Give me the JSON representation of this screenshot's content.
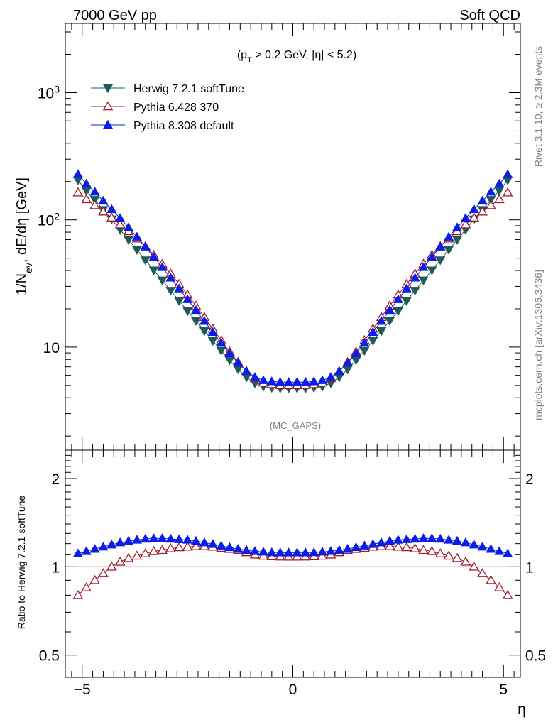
{
  "header": {
    "left": "7000 GeV pp",
    "right": "Soft QCD"
  },
  "annotations": {
    "cut": "(p_T > 0.2 GeV, |η| < 5.2)",
    "analysis": "(MC_GAPS)",
    "rivet": "Rivet 3.1.10, ≥ 2.3M events",
    "mcplots": "mcplots.cern.ch [arXiv:1306.3436]"
  },
  "colors": {
    "herwig": "#1f5b5b",
    "pythia6": "#a01a2a",
    "pythia8": "#0b1ee6"
  },
  "chart_data": [
    {
      "type": "line",
      "scale": "log",
      "ylabel": "1/N_ev, dE/dη [GeV]",
      "xlabel": "η",
      "xlim": [
        -5.4,
        5.4
      ],
      "ylim": [
        1.55,
        3500
      ],
      "y_tick_labels": [
        {
          "value": 10,
          "label": "10"
        },
        {
          "value": 100,
          "label": "10^2"
        },
        {
          "value": 1000,
          "label": "10^3"
        }
      ],
      "x": [
        -5.1,
        -4.9,
        -4.7,
        -4.5,
        -4.3,
        -4.1,
        -3.9,
        -3.7,
        -3.5,
        -3.3,
        -3.1,
        -2.9,
        -2.7,
        -2.5,
        -2.3,
        -2.1,
        -1.9,
        -1.7,
        -1.5,
        -1.3,
        -1.1,
        -0.9,
        -0.7,
        -0.5,
        -0.3,
        -0.1,
        0.1,
        0.3,
        0.5,
        0.7,
        0.9,
        1.1,
        1.3,
        1.5,
        1.7,
        1.9,
        2.1,
        2.3,
        2.5,
        2.7,
        2.9,
        3.1,
        3.3,
        3.5,
        3.7,
        3.9,
        4.1,
        4.3,
        4.5,
        4.7,
        4.9,
        5.1
      ],
      "series": [
        {
          "name": "Herwig 7.2.1 softTune",
          "marker": "triangle-down-filled",
          "values": [
            205,
            170,
            144,
            120,
            101,
            83.7,
            69.8,
            58.2,
            48.3,
            40.2,
            33.5,
            27.8,
            23.1,
            19.3,
            16.1,
            13.4,
            11.2,
            9.39,
            7.89,
            6.7,
            5.8,
            5.2,
            4.9,
            4.8,
            4.75,
            4.75,
            4.75,
            4.75,
            4.8,
            4.9,
            5.2,
            5.8,
            6.7,
            7.89,
            9.39,
            11.2,
            13.4,
            16.1,
            19.3,
            23.1,
            27.8,
            33.5,
            40.2,
            48.3,
            58.2,
            69.8,
            83.7,
            101,
            120,
            144,
            170,
            205
          ]
        },
        {
          "name": "Pythia 6.428 370",
          "marker": "triangle-up-open",
          "values": [
            164,
            145,
            130,
            116,
            104,
            92.0,
            81.2,
            71.1,
            61.8,
            53.0,
            45.0,
            37.7,
            31.3,
            25.8,
            21.1,
            17.2,
            13.9,
            11.3,
            9.2,
            7.61,
            6.46,
            5.68,
            5.26,
            5.1,
            5.02,
            5.01,
            5.01,
            5.02,
            5.1,
            5.26,
            5.68,
            6.46,
            7.61,
            9.2,
            11.3,
            13.9,
            17.2,
            21.1,
            25.8,
            31.3,
            37.7,
            45.0,
            53.0,
            61.8,
            71.1,
            81.2,
            92.0,
            104,
            116,
            130,
            145,
            164
          ]
        },
        {
          "name": "Pythia 8.308 default",
          "marker": "triangle-up-filled",
          "values": [
            228,
            192,
            166,
            141,
            121,
            103,
            87.1,
            73.4,
            61.4,
            51.0,
            42.4,
            35.0,
            28.8,
            23.7,
            19.5,
            16.0,
            13.1,
            10.8,
            8.92,
            7.51,
            6.46,
            5.8,
            5.48,
            5.37,
            5.31,
            5.31,
            5.31,
            5.31,
            5.37,
            5.48,
            5.8,
            6.46,
            7.51,
            8.92,
            10.8,
            13.1,
            16.0,
            19.5,
            23.7,
            28.8,
            35.0,
            42.4,
            51.0,
            61.4,
            73.4,
            87.1,
            103,
            121,
            141,
            166,
            192,
            228
          ]
        }
      ]
    },
    {
      "type": "line",
      "scale": "log",
      "ylabel": "Ratio to Herwig 7.2.1 softTune",
      "xlabel": "η",
      "xlim": [
        -5.4,
        5.4
      ],
      "ylim": [
        0.42,
        2.5
      ],
      "y_tick_labels": [
        {
          "value": 0.5,
          "label": "0.5"
        },
        {
          "value": 1,
          "label": "1"
        },
        {
          "value": 2,
          "label": "2"
        }
      ],
      "x_tick_labels": [
        {
          "value": -5,
          "label": "−5"
        },
        {
          "value": 0,
          "label": "0"
        },
        {
          "value": 5,
          "label": "5"
        }
      ],
      "reference_line": 1,
      "series": [
        {
          "name": "Pythia 6.428 370",
          "marker": "triangle-up-open",
          "values": [
            0.8,
            0.85,
            0.9,
            0.95,
            1.0,
            1.04,
            1.07,
            1.09,
            1.11,
            1.13,
            1.14,
            1.155,
            1.165,
            1.17,
            1.175,
            1.175,
            1.17,
            1.16,
            1.15,
            1.14,
            1.12,
            1.1,
            1.09,
            1.085,
            1.083,
            1.082,
            1.082,
            1.083,
            1.085,
            1.09,
            1.1,
            1.12,
            1.14,
            1.15,
            1.16,
            1.17,
            1.175,
            1.175,
            1.17,
            1.165,
            1.155,
            1.14,
            1.13,
            1.11,
            1.09,
            1.07,
            1.04,
            1.0,
            0.95,
            0.9,
            0.85,
            0.8
          ]
        },
        {
          "name": "Pythia 8.308 default",
          "marker": "triangle-up-filled",
          "values": [
            1.11,
            1.13,
            1.15,
            1.17,
            1.19,
            1.21,
            1.225,
            1.235,
            1.245,
            1.25,
            1.25,
            1.245,
            1.24,
            1.235,
            1.225,
            1.21,
            1.195,
            1.18,
            1.165,
            1.15,
            1.14,
            1.13,
            1.125,
            1.12,
            1.118,
            1.118,
            1.118,
            1.118,
            1.12,
            1.125,
            1.13,
            1.14,
            1.15,
            1.165,
            1.18,
            1.195,
            1.21,
            1.225,
            1.235,
            1.24,
            1.245,
            1.25,
            1.25,
            1.245,
            1.235,
            1.225,
            1.21,
            1.19,
            1.17,
            1.15,
            1.13,
            1.11
          ]
        }
      ]
    }
  ]
}
